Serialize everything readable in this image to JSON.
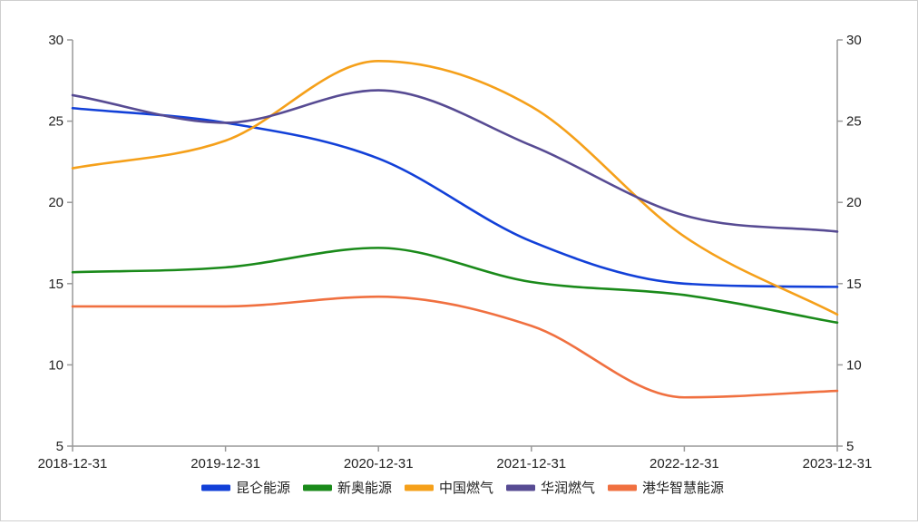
{
  "chart_data": {
    "type": "line",
    "title": "",
    "xlabel": "",
    "ylabel": "",
    "x": [
      "2018-12-31",
      "2019-12-31",
      "2020-12-31",
      "2021-12-31",
      "2022-12-31",
      "2023-12-31"
    ],
    "ylim": [
      5,
      30
    ],
    "y_ticks": [
      5,
      10,
      15,
      20,
      25,
      30
    ],
    "secondary_y_ticks": [
      5,
      10,
      15,
      20,
      25,
      30
    ],
    "grid": false,
    "legend_position": "bottom",
    "series": [
      {
        "name": "昆仑能源",
        "color": "#1240d8",
        "values": [
          25.8,
          24.9,
          22.7,
          17.6,
          15.0,
          14.8
        ]
      },
      {
        "name": "新奥能源",
        "color": "#1a8a1a",
        "values": [
          15.7,
          16.0,
          17.2,
          15.1,
          14.3,
          12.6
        ]
      },
      {
        "name": "中国燃气",
        "color": "#f5a01a",
        "values": [
          22.1,
          23.8,
          28.7,
          25.9,
          17.9,
          13.1
        ]
      },
      {
        "name": "华润燃气",
        "color": "#574b93",
        "values": [
          26.6,
          24.9,
          26.9,
          23.5,
          19.2,
          18.2
        ]
      },
      {
        "name": "港华智慧能源",
        "color": "#f07040",
        "values": [
          13.6,
          13.6,
          14.2,
          12.4,
          8.0,
          8.4
        ]
      }
    ]
  }
}
